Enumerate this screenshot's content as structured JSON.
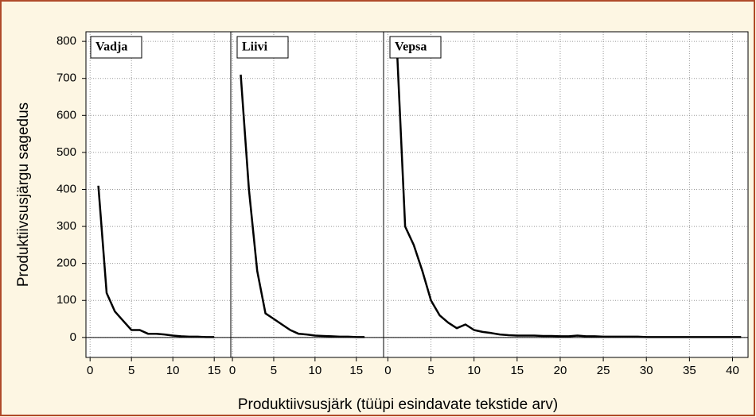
{
  "chart_data": [
    {
      "type": "line",
      "title": "Vadja",
      "ylabel": "Produktiivsusjärgu sagedus",
      "xlabel": "Produktiivsusjärk (tüüpi esindavate tekstide arv)",
      "x": [
        1,
        2,
        3,
        4,
        5,
        6,
        7,
        8,
        9,
        10,
        11,
        12,
        13,
        14,
        15
      ],
      "values": [
        410,
        120,
        70,
        45,
        20,
        20,
        10,
        10,
        8,
        5,
        3,
        2,
        2,
        1,
        1
      ],
      "color": "#000000",
      "xlim": [
        -0.5,
        17
      ],
      "xticks": [
        0,
        5,
        10,
        15
      ],
      "ylim": [
        -54,
        826
      ],
      "yticks": [
        0,
        100,
        200,
        300,
        400,
        500,
        600,
        700,
        800
      ],
      "grid": true
    },
    {
      "type": "line",
      "title": "Liivi",
      "x": [
        1,
        2,
        3,
        4,
        5,
        6,
        7,
        8,
        9,
        10,
        11,
        12,
        13,
        14,
        15,
        16
      ],
      "values": [
        710,
        400,
        180,
        65,
        50,
        35,
        20,
        10,
        8,
        5,
        4,
        3,
        2,
        2,
        1,
        1
      ],
      "color": "#000000",
      "xlim": [
        -0.2,
        18.3
      ],
      "xticks": [
        0,
        5,
        10,
        15
      ],
      "ylim": [
        -54,
        826
      ],
      "grid": true
    },
    {
      "type": "line",
      "title": "Vepsa",
      "x": [
        1,
        2,
        3,
        4,
        5,
        6,
        7,
        8,
        9,
        10,
        11,
        12,
        13,
        14,
        15,
        16,
        17,
        18,
        19,
        20,
        21,
        22,
        23,
        24,
        25,
        26,
        27,
        28,
        29,
        30,
        31,
        32,
        33,
        34,
        35,
        36,
        37,
        38,
        39,
        40,
        41
      ],
      "values": [
        810,
        300,
        250,
        180,
        100,
        60,
        40,
        25,
        35,
        20,
        15,
        12,
        8,
        6,
        5,
        5,
        5,
        4,
        4,
        3,
        3,
        5,
        3,
        3,
        2,
        2,
        2,
        2,
        2,
        1,
        1,
        1,
        1,
        1,
        1,
        1,
        1,
        1,
        1,
        1,
        1
      ],
      "color": "#000000",
      "xlim": [
        -0.5,
        41.8
      ],
      "xticks": [
        0,
        5,
        10,
        15,
        20,
        25,
        30,
        35,
        40
      ],
      "ylim": [
        -54,
        826
      ],
      "grid": true
    }
  ]
}
